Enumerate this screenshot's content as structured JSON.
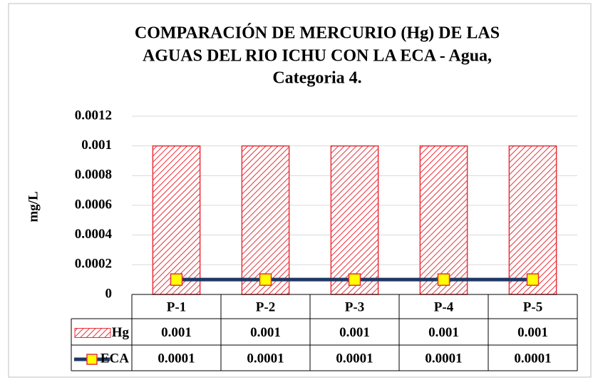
{
  "chart_data": {
    "type": "bar",
    "title": [
      "COMPARACIÓN DE MERCURIO (Hg) DE LAS",
      "AGUAS DEL RIO ICHU CON LA ECA - Agua,",
      "Categoria 4."
    ],
    "y_label": "mg/L",
    "categories": [
      "P-1",
      "P-2",
      "P-3",
      "P-4",
      "P-5"
    ],
    "series": [
      {
        "name": "Hg",
        "type": "bar",
        "color": "#e8303a",
        "values": [
          0.001,
          0.001,
          0.001,
          0.001,
          0.001
        ]
      },
      {
        "name": "ECA",
        "type": "line",
        "color": "#1f3864",
        "marker_color": "#ffff00",
        "values": [
          0.0001,
          0.0001,
          0.0001,
          0.0001,
          0.0001
        ]
      }
    ],
    "ylim": [
      0,
      0.0012
    ],
    "yticks": [
      0,
      0.0002,
      0.0004,
      0.0006,
      0.0008,
      0.001,
      0.0012
    ],
    "grid": true,
    "data_table": true
  }
}
